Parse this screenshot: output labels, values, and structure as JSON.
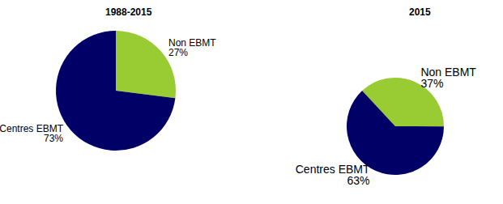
{
  "chart_data": [
    {
      "type": "pie",
      "title": "1988-2015",
      "categories": [
        "Non EBMT",
        "Centres EBMT"
      ],
      "values": [
        27,
        73
      ],
      "value_labels": [
        "27%",
        "73%"
      ],
      "colors": [
        "#99cc33",
        "#000066"
      ],
      "data_labels": true
    },
    {
      "type": "pie",
      "title": "2015",
      "categories": [
        "Non EBMT",
        "Centres EBMT"
      ],
      "values": [
        37,
        63
      ],
      "value_labels": [
        "37%",
        "63%"
      ],
      "colors": [
        "#99cc33",
        "#000066"
      ],
      "data_labels": true
    }
  ]
}
